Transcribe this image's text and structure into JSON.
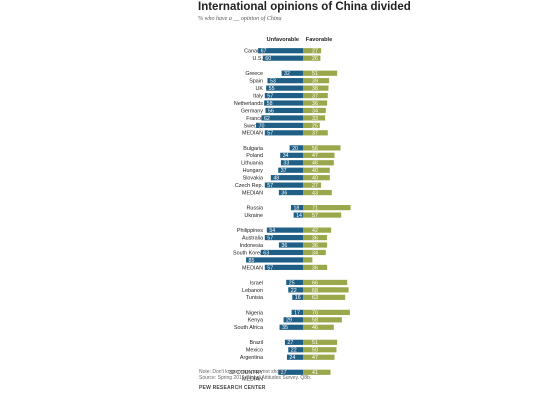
{
  "title": "International opinions of China divided",
  "subtitle": "% who have a __ opinion of China",
  "note": "Note: Don't know responses not shown.",
  "source": "Source: Spring 2019 Global Attitudes Survey. Q8b.",
  "credit": "PEW RESEARCH CENTER",
  "colors": {
    "unfavorable": "#1f5f86",
    "favorable": "#9aa74a",
    "label_text": "#ffffff"
  },
  "chart_data": {
    "type": "bar",
    "series": [
      {
        "name": "Unfavorable",
        "color": "#1f5f86"
      },
      {
        "name": "Favorable",
        "color": "#9aa74a"
      }
    ],
    "groups": [
      {
        "rows": [
          {
            "label": "Canada",
            "unfavorable": 67,
            "favorable": 27
          },
          {
            "label": "U.S.",
            "unfavorable": 60,
            "favorable": 26
          }
        ]
      },
      {
        "rows": [
          {
            "label": "Greece",
            "unfavorable": 32,
            "favorable": 51
          },
          {
            "label": "Spain",
            "unfavorable": 53,
            "favorable": 39
          },
          {
            "label": "UK",
            "unfavorable": 55,
            "favorable": 38
          },
          {
            "label": "Italy",
            "unfavorable": 57,
            "favorable": 37
          },
          {
            "label": "Netherlands",
            "unfavorable": 58,
            "favorable": 36
          },
          {
            "label": "Germany",
            "unfavorable": 56,
            "favorable": 34
          },
          {
            "label": "France",
            "unfavorable": 62,
            "favorable": 33
          },
          {
            "label": "Sweden",
            "unfavorable": 70,
            "favorable": 25
          },
          {
            "label": "MEDIAN",
            "unfavorable": 57,
            "favorable": 37
          }
        ]
      },
      {
        "rows": [
          {
            "label": "Bulgaria",
            "unfavorable": 20,
            "favorable": 56
          },
          {
            "label": "Poland",
            "unfavorable": 34,
            "favorable": 47
          },
          {
            "label": "Lithuania",
            "unfavorable": 33,
            "favorable": 46
          },
          {
            "label": "Hungary",
            "unfavorable": 37,
            "favorable": 40
          },
          {
            "label": "Slovakia",
            "unfavorable": 48,
            "favorable": 40
          },
          {
            "label": "Czech Rep.",
            "unfavorable": 57,
            "favorable": 27
          },
          {
            "label": "MEDIAN",
            "unfavorable": 36,
            "favorable": 43
          }
        ]
      },
      {
        "rows": [
          {
            "label": "Russia",
            "unfavorable": 18,
            "favorable": 71
          },
          {
            "label": "Ukraine",
            "unfavorable": 14,
            "favorable": 57
          }
        ]
      },
      {
        "rows": [
          {
            "label": "Philippines",
            "unfavorable": 54,
            "favorable": 42
          },
          {
            "label": "Australia",
            "unfavorable": 57,
            "favorable": 36
          },
          {
            "label": "Indonesia",
            "unfavorable": 36,
            "favorable": 36
          },
          {
            "label": "South Korea",
            "unfavorable": 63,
            "favorable": 34
          },
          {
            "label": "Japan",
            "unfavorable": 85,
            "favorable": 14
          },
          {
            "label": "MEDIAN",
            "unfavorable": 57,
            "favorable": 36
          }
        ]
      },
      {
        "rows": [
          {
            "label": "Israel",
            "unfavorable": 25,
            "favorable": 66
          },
          {
            "label": "Lebanon",
            "unfavorable": 22,
            "favorable": 68
          },
          {
            "label": "Tunisia",
            "unfavorable": 16,
            "favorable": 63
          }
        ]
      },
      {
        "rows": [
          {
            "label": "Nigeria",
            "unfavorable": 17,
            "favorable": 70
          },
          {
            "label": "Kenya",
            "unfavorable": 29,
            "favorable": 58
          },
          {
            "label": "South Africa",
            "unfavorable": 35,
            "favorable": 46
          }
        ]
      },
      {
        "rows": [
          {
            "label": "Brazil",
            "unfavorable": 27,
            "favorable": 51
          },
          {
            "label": "Mexico",
            "unfavorable": 22,
            "favorable": 50
          },
          {
            "label": "Argentina",
            "unfavorable": 24,
            "favorable": 47
          }
        ]
      },
      {
        "rows": [
          {
            "label": "32 COUNTRY MEDIAN",
            "label_lines": [
              "32 COUNTRY",
              "MEDIAN"
            ],
            "unfavorable": 37,
            "favorable": 41
          }
        ]
      }
    ]
  }
}
